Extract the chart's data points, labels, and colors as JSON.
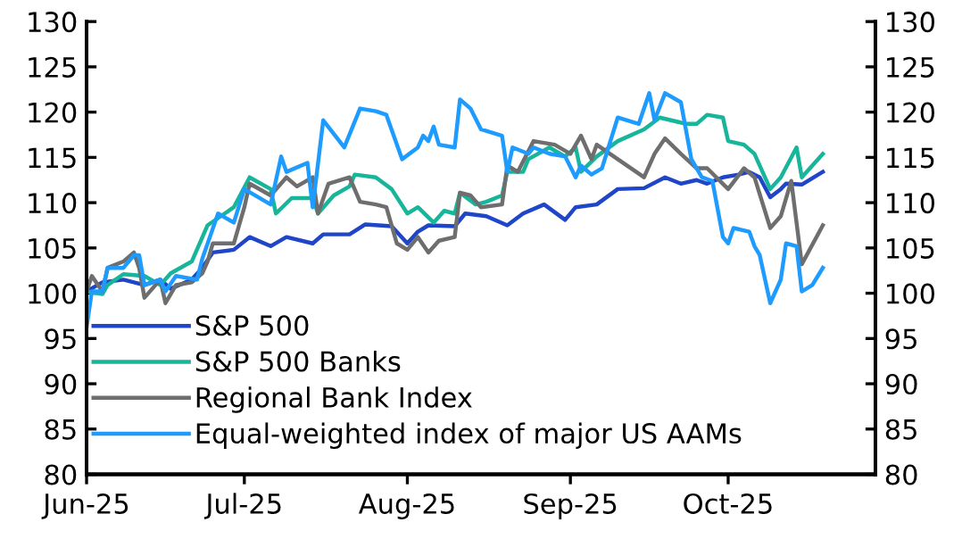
{
  "chart_data": {
    "type": "line",
    "xlim": [
      "2025-06-01",
      "2025-10-29"
    ],
    "xticks": [
      {
        "value": "2025-06-01",
        "label": "Jun-25"
      },
      {
        "value": "2025-07-01",
        "label": "Jul-25"
      },
      {
        "value": "2025-08-01",
        "label": "Aug-25"
      },
      {
        "value": "2025-09-01",
        "label": "Sep-25"
      },
      {
        "value": "2025-10-01",
        "label": "Oct-25"
      }
    ],
    "ylim": [
      80,
      130
    ],
    "yticks": [
      80,
      85,
      90,
      95,
      100,
      105,
      110,
      115,
      120,
      125,
      130
    ],
    "y2lim": [
      80,
      130
    ],
    "y2ticks": [
      80,
      85,
      90,
      95,
      100,
      105,
      110,
      115,
      120,
      125,
      130
    ],
    "grid": false,
    "legend": "bottom",
    "marker": "none",
    "line_style": "solid",
    "series": [
      {
        "name": "S&P 500",
        "color": "#1f45c8",
        "x": [
          "2025-06-01",
          "2025-06-04",
          "2025-06-08",
          "2025-06-12",
          "2025-06-15",
          "2025-06-17",
          "2025-06-21",
          "2025-06-23",
          "2025-06-25",
          "2025-06-29",
          "2025-07-02",
          "2025-07-06",
          "2025-07-09",
          "2025-07-14",
          "2025-07-16",
          "2025-07-21",
          "2025-07-24",
          "2025-07-29",
          "2025-08-01",
          "2025-08-03",
          "2025-08-05",
          "2025-08-10",
          "2025-08-12",
          "2025-08-16",
          "2025-08-20",
          "2025-08-23",
          "2025-08-27",
          "2025-08-31",
          "2025-09-02",
          "2025-09-06",
          "2025-09-10",
          "2025-09-15",
          "2025-09-19",
          "2025-09-22",
          "2025-09-25",
          "2025-09-27",
          "2025-09-30",
          "2025-10-03",
          "2025-10-05",
          "2025-10-07",
          "2025-10-09",
          "2025-10-11",
          "2025-10-12",
          "2025-10-15",
          "2025-10-19"
        ],
        "values": [
          100.2,
          101.2,
          101.5,
          100.9,
          101.5,
          100.5,
          101.5,
          102.8,
          104.5,
          104.8,
          106.2,
          105.2,
          106.2,
          105.5,
          106.5,
          106.5,
          107.6,
          107.4,
          105.5,
          106.8,
          107.5,
          107.4,
          108.8,
          108.5,
          107.5,
          108.8,
          109.8,
          108.1,
          109.5,
          109.8,
          111.5,
          111.6,
          112.8,
          112.1,
          112.5,
          112.1,
          112.8,
          113.1,
          113.4,
          112.8,
          110.6,
          111.5,
          112.1,
          112.0,
          113.4
        ]
      },
      {
        "name": "S&P 500 Banks",
        "color": "#17b59a",
        "x": [
          "2025-06-01",
          "2025-06-04",
          "2025-06-05",
          "2025-06-08",
          "2025-06-12",
          "2025-06-15",
          "2025-06-17",
          "2025-06-21",
          "2025-06-24",
          "2025-06-29",
          "2025-07-02",
          "2025-07-06",
          "2025-07-07",
          "2025-07-10",
          "2025-07-14",
          "2025-07-15",
          "2025-07-18",
          "2025-07-21",
          "2025-07-22",
          "2025-07-26",
          "2025-07-29",
          "2025-08-01",
          "2025-08-03",
          "2025-08-06",
          "2025-08-08",
          "2025-08-10",
          "2025-08-11",
          "2025-08-14",
          "2025-08-16",
          "2025-08-19",
          "2025-08-20",
          "2025-08-23",
          "2025-08-24",
          "2025-08-28",
          "2025-08-31",
          "2025-09-02",
          "2025-09-03",
          "2025-09-06",
          "2025-09-10",
          "2025-09-15",
          "2025-09-18",
          "2025-09-23",
          "2025-09-25",
          "2025-09-27",
          "2025-09-30",
          "2025-10-01",
          "2025-10-04",
          "2025-10-06",
          "2025-10-09",
          "2025-10-11",
          "2025-10-14",
          "2025-10-15",
          "2025-10-19"
        ],
        "values": [
          100.2,
          99.9,
          100.9,
          102.1,
          101.9,
          100.9,
          102.2,
          103.5,
          107.5,
          109.5,
          112.8,
          111.5,
          108.8,
          110.5,
          110.5,
          108.8,
          110.8,
          111.8,
          113.1,
          112.8,
          111.5,
          108.8,
          109.5,
          107.8,
          109.1,
          108.8,
          111.1,
          109.8,
          110.1,
          110.8,
          113.4,
          113.4,
          114.8,
          116.1,
          115.1,
          116.1,
          113.4,
          115.1,
          116.8,
          118.1,
          119.4,
          118.7,
          118.7,
          119.7,
          119.4,
          116.8,
          116.4,
          115.4,
          111.5,
          112.8,
          116.1,
          112.8,
          115.4
        ]
      },
      {
        "name": "Regional Bank Index",
        "color": "#6e6e6e",
        "x": [
          "2025-06-01",
          "2025-06-02",
          "2025-06-04",
          "2025-06-05",
          "2025-06-08",
          "2025-06-10",
          "2025-06-11",
          "2025-06-12",
          "2025-06-15",
          "2025-06-16",
          "2025-06-18",
          "2025-06-21",
          "2025-06-23",
          "2025-06-24",
          "2025-06-25",
          "2025-06-29",
          "2025-07-01",
          "2025-07-02",
          "2025-07-06",
          "2025-07-09",
          "2025-07-11",
          "2025-07-14",
          "2025-07-15",
          "2025-07-17",
          "2025-07-21",
          "2025-07-23",
          "2025-07-26",
          "2025-07-28",
          "2025-07-30",
          "2025-08-01",
          "2025-08-03",
          "2025-08-05",
          "2025-08-07",
          "2025-08-10",
          "2025-08-11",
          "2025-08-13",
          "2025-08-15",
          "2025-08-19",
          "2025-08-20",
          "2025-08-22",
          "2025-08-25",
          "2025-08-29",
          "2025-09-01",
          "2025-09-03",
          "2025-09-05",
          "2025-09-06",
          "2025-09-10",
          "2025-09-15",
          "2025-09-17",
          "2025-09-19",
          "2025-09-22",
          "2025-09-25",
          "2025-09-27",
          "2025-10-01",
          "2025-10-04",
          "2025-10-06",
          "2025-10-09",
          "2025-10-11",
          "2025-10-13",
          "2025-10-15",
          "2025-10-19"
        ],
        "values": [
          100.2,
          101.9,
          100.2,
          102.8,
          103.5,
          104.5,
          102.8,
          99.5,
          101.5,
          98.9,
          100.9,
          101.2,
          102.2,
          103.5,
          105.5,
          105.5,
          109.5,
          112.1,
          110.8,
          112.8,
          111.8,
          112.8,
          108.8,
          112.1,
          112.8,
          110.1,
          109.8,
          109.5,
          105.5,
          104.8,
          106.2,
          104.5,
          105.8,
          106.2,
          111.1,
          110.8,
          109.5,
          109.8,
          114.1,
          113.4,
          116.8,
          116.4,
          115.4,
          117.4,
          114.8,
          116.4,
          114.8,
          112.8,
          115.4,
          117.1,
          115.4,
          113.8,
          113.8,
          111.5,
          113.8,
          112.8,
          107.2,
          108.5,
          112.4,
          103.2,
          107.5
        ]
      },
      {
        "name": "Equal-weighted index of major US AAMs",
        "color": "#1e9bff",
        "x": [
          "2025-06-01",
          "2025-06-02",
          "2025-06-04",
          "2025-06-05",
          "2025-06-08",
          "2025-06-10",
          "2025-06-11",
          "2025-06-12",
          "2025-06-15",
          "2025-06-16",
          "2025-06-18",
          "2025-06-22",
          "2025-06-23",
          "2025-06-26",
          "2025-06-29",
          "2025-07-01",
          "2025-07-06",
          "2025-07-08",
          "2025-07-09",
          "2025-07-13",
          "2025-07-14",
          "2025-07-16",
          "2025-07-20",
          "2025-07-23",
          "2025-07-26",
          "2025-07-28",
          "2025-07-31",
          "2025-08-03",
          "2025-08-04",
          "2025-08-05",
          "2025-08-06",
          "2025-08-07",
          "2025-08-10",
          "2025-08-11",
          "2025-08-13",
          "2025-08-15",
          "2025-08-19",
          "2025-08-20",
          "2025-08-21",
          "2025-08-24",
          "2025-08-25",
          "2025-08-28",
          "2025-08-31",
          "2025-09-02",
          "2025-09-03",
          "2025-09-05",
          "2025-09-07",
          "2025-09-10",
          "2025-09-14",
          "2025-09-16",
          "2025-09-17",
          "2025-09-19",
          "2025-09-22",
          "2025-09-24",
          "2025-09-26",
          "2025-09-28",
          "2025-09-30",
          "2025-10-01",
          "2025-10-02",
          "2025-10-05",
          "2025-10-06",
          "2025-10-07",
          "2025-10-09",
          "2025-10-11",
          "2025-10-12",
          "2025-10-14",
          "2025-10-15",
          "2025-10-17",
          "2025-10-19"
        ],
        "values": [
          96.2,
          100.2,
          100.2,
          102.8,
          102.8,
          104.2,
          104.2,
          100.9,
          101.5,
          100.2,
          101.9,
          101.5,
          103.8,
          108.8,
          107.8,
          111.5,
          109.8,
          115.1,
          113.4,
          114.4,
          109.5,
          119.1,
          116.1,
          120.4,
          120.1,
          119.7,
          114.8,
          116.1,
          117.4,
          116.8,
          118.4,
          116.4,
          116.1,
          121.4,
          120.4,
          118.1,
          117.4,
          113.4,
          116.1,
          115.4,
          116.1,
          115.4,
          115.1,
          112.8,
          114.1,
          113.1,
          113.8,
          119.4,
          118.7,
          122.1,
          119.1,
          122.1,
          121.1,
          114.8,
          112.8,
          112.4,
          106.2,
          105.5,
          107.2,
          106.8,
          105.2,
          104.2,
          98.9,
          101.5,
          105.5,
          105.2,
          100.2,
          100.9,
          102.8
        ]
      }
    ]
  }
}
